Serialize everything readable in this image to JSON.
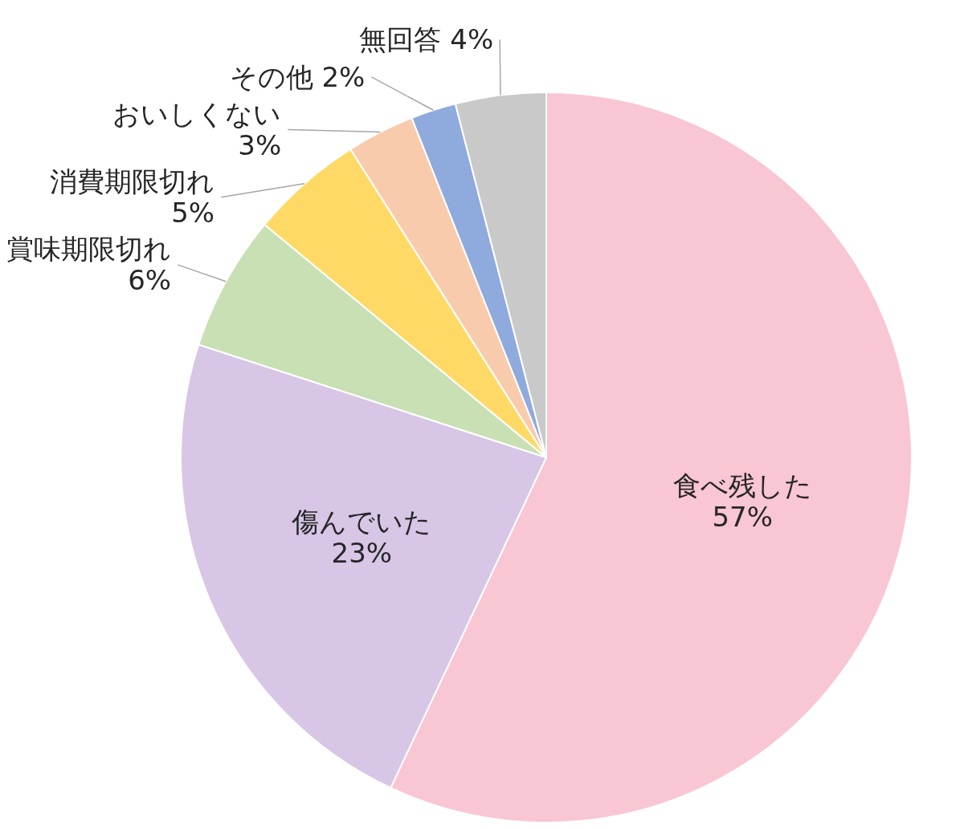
{
  "chart_data": {
    "type": "pie",
    "categories": [
      "食べ残した",
      "傷んでいた",
      "賞味期限切れ",
      "消費期限切れ",
      "おいしくない",
      "その他",
      "無回答"
    ],
    "values": [
      57,
      23,
      6,
      5,
      3,
      2,
      4
    ],
    "colors": [
      "#f9c6d3",
      "#d7c6e6",
      "#c8e0b4",
      "#ffd966",
      "#f8cbad",
      "#8faadc",
      "#c9c9c9"
    ],
    "value_labels": [
      "57%",
      "23%",
      "6%",
      "5%",
      "3%",
      "2%",
      "4%"
    ]
  }
}
